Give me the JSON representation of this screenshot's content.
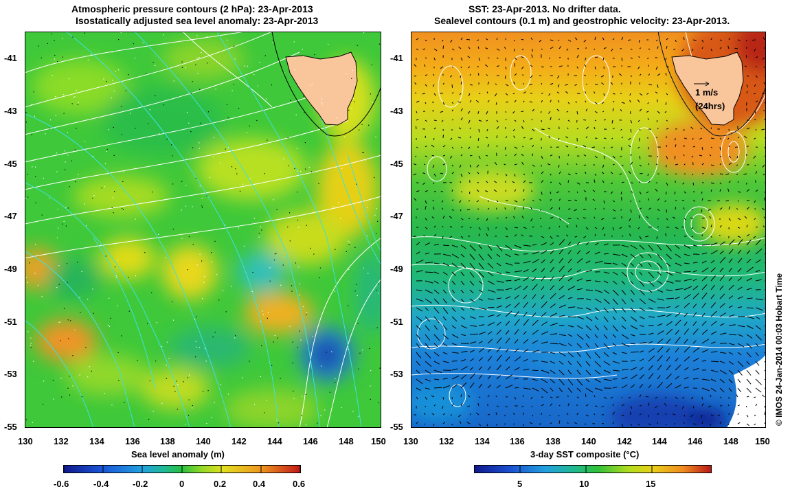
{
  "left_panel": {
    "title_line1": "Atmospheric pressure contours (2 hPa): 23-Apr-2013",
    "title_line2": "Isostatically adjusted sea level anomaly: 23-Apr-2013",
    "lat_labels": [
      "-41",
      "-43",
      "-45",
      "-47",
      "-49",
      "-51",
      "-53",
      "-55"
    ],
    "lon_labels": [
      "130",
      "132",
      "134",
      "136",
      "138",
      "140",
      "142",
      "144",
      "146",
      "148",
      "150"
    ],
    "colorbar_label": "Sea level anomaly (m)",
    "colorbar_ticks": [
      "-0.6",
      "-0.4",
      "-0.2",
      "0",
      "0.2",
      "0.4",
      "0.6"
    ],
    "colorbar_range": [
      -0.6,
      0.6
    ]
  },
  "right_panel": {
    "title_line1": "SST: 23-Apr-2013. No drifter data.",
    "title_line2": "Sealevel contours (0.1 m) and geostrophic velocity: 23-Apr-2013.",
    "lat_labels": [
      "-41",
      "-43",
      "-45",
      "-47",
      "-49",
      "-51",
      "-53",
      "-55"
    ],
    "lon_labels": [
      "130",
      "132",
      "134",
      "136",
      "138",
      "140",
      "142",
      "144",
      "146",
      "148",
      "150"
    ],
    "scale_speed": "1 m/s",
    "scale_time": "(24hrs)",
    "colorbar_label": "3-day SST composite (°C)",
    "colorbar_ticks": [
      "5",
      "10",
      "15"
    ],
    "colorbar_range": [
      1.5,
      19.5
    ]
  },
  "credit": "© IMOS 24-Jan-2014 00:03 Hobart Time",
  "map_extent": {
    "lon": [
      130,
      150
    ],
    "lat": [
      -55,
      -40
    ]
  },
  "colors": {
    "land": "#f9c59b",
    "pressure_contour": "#ffffff",
    "sla_contour": "#3ee0e0",
    "sealevel_contour": "#ffffff"
  }
}
